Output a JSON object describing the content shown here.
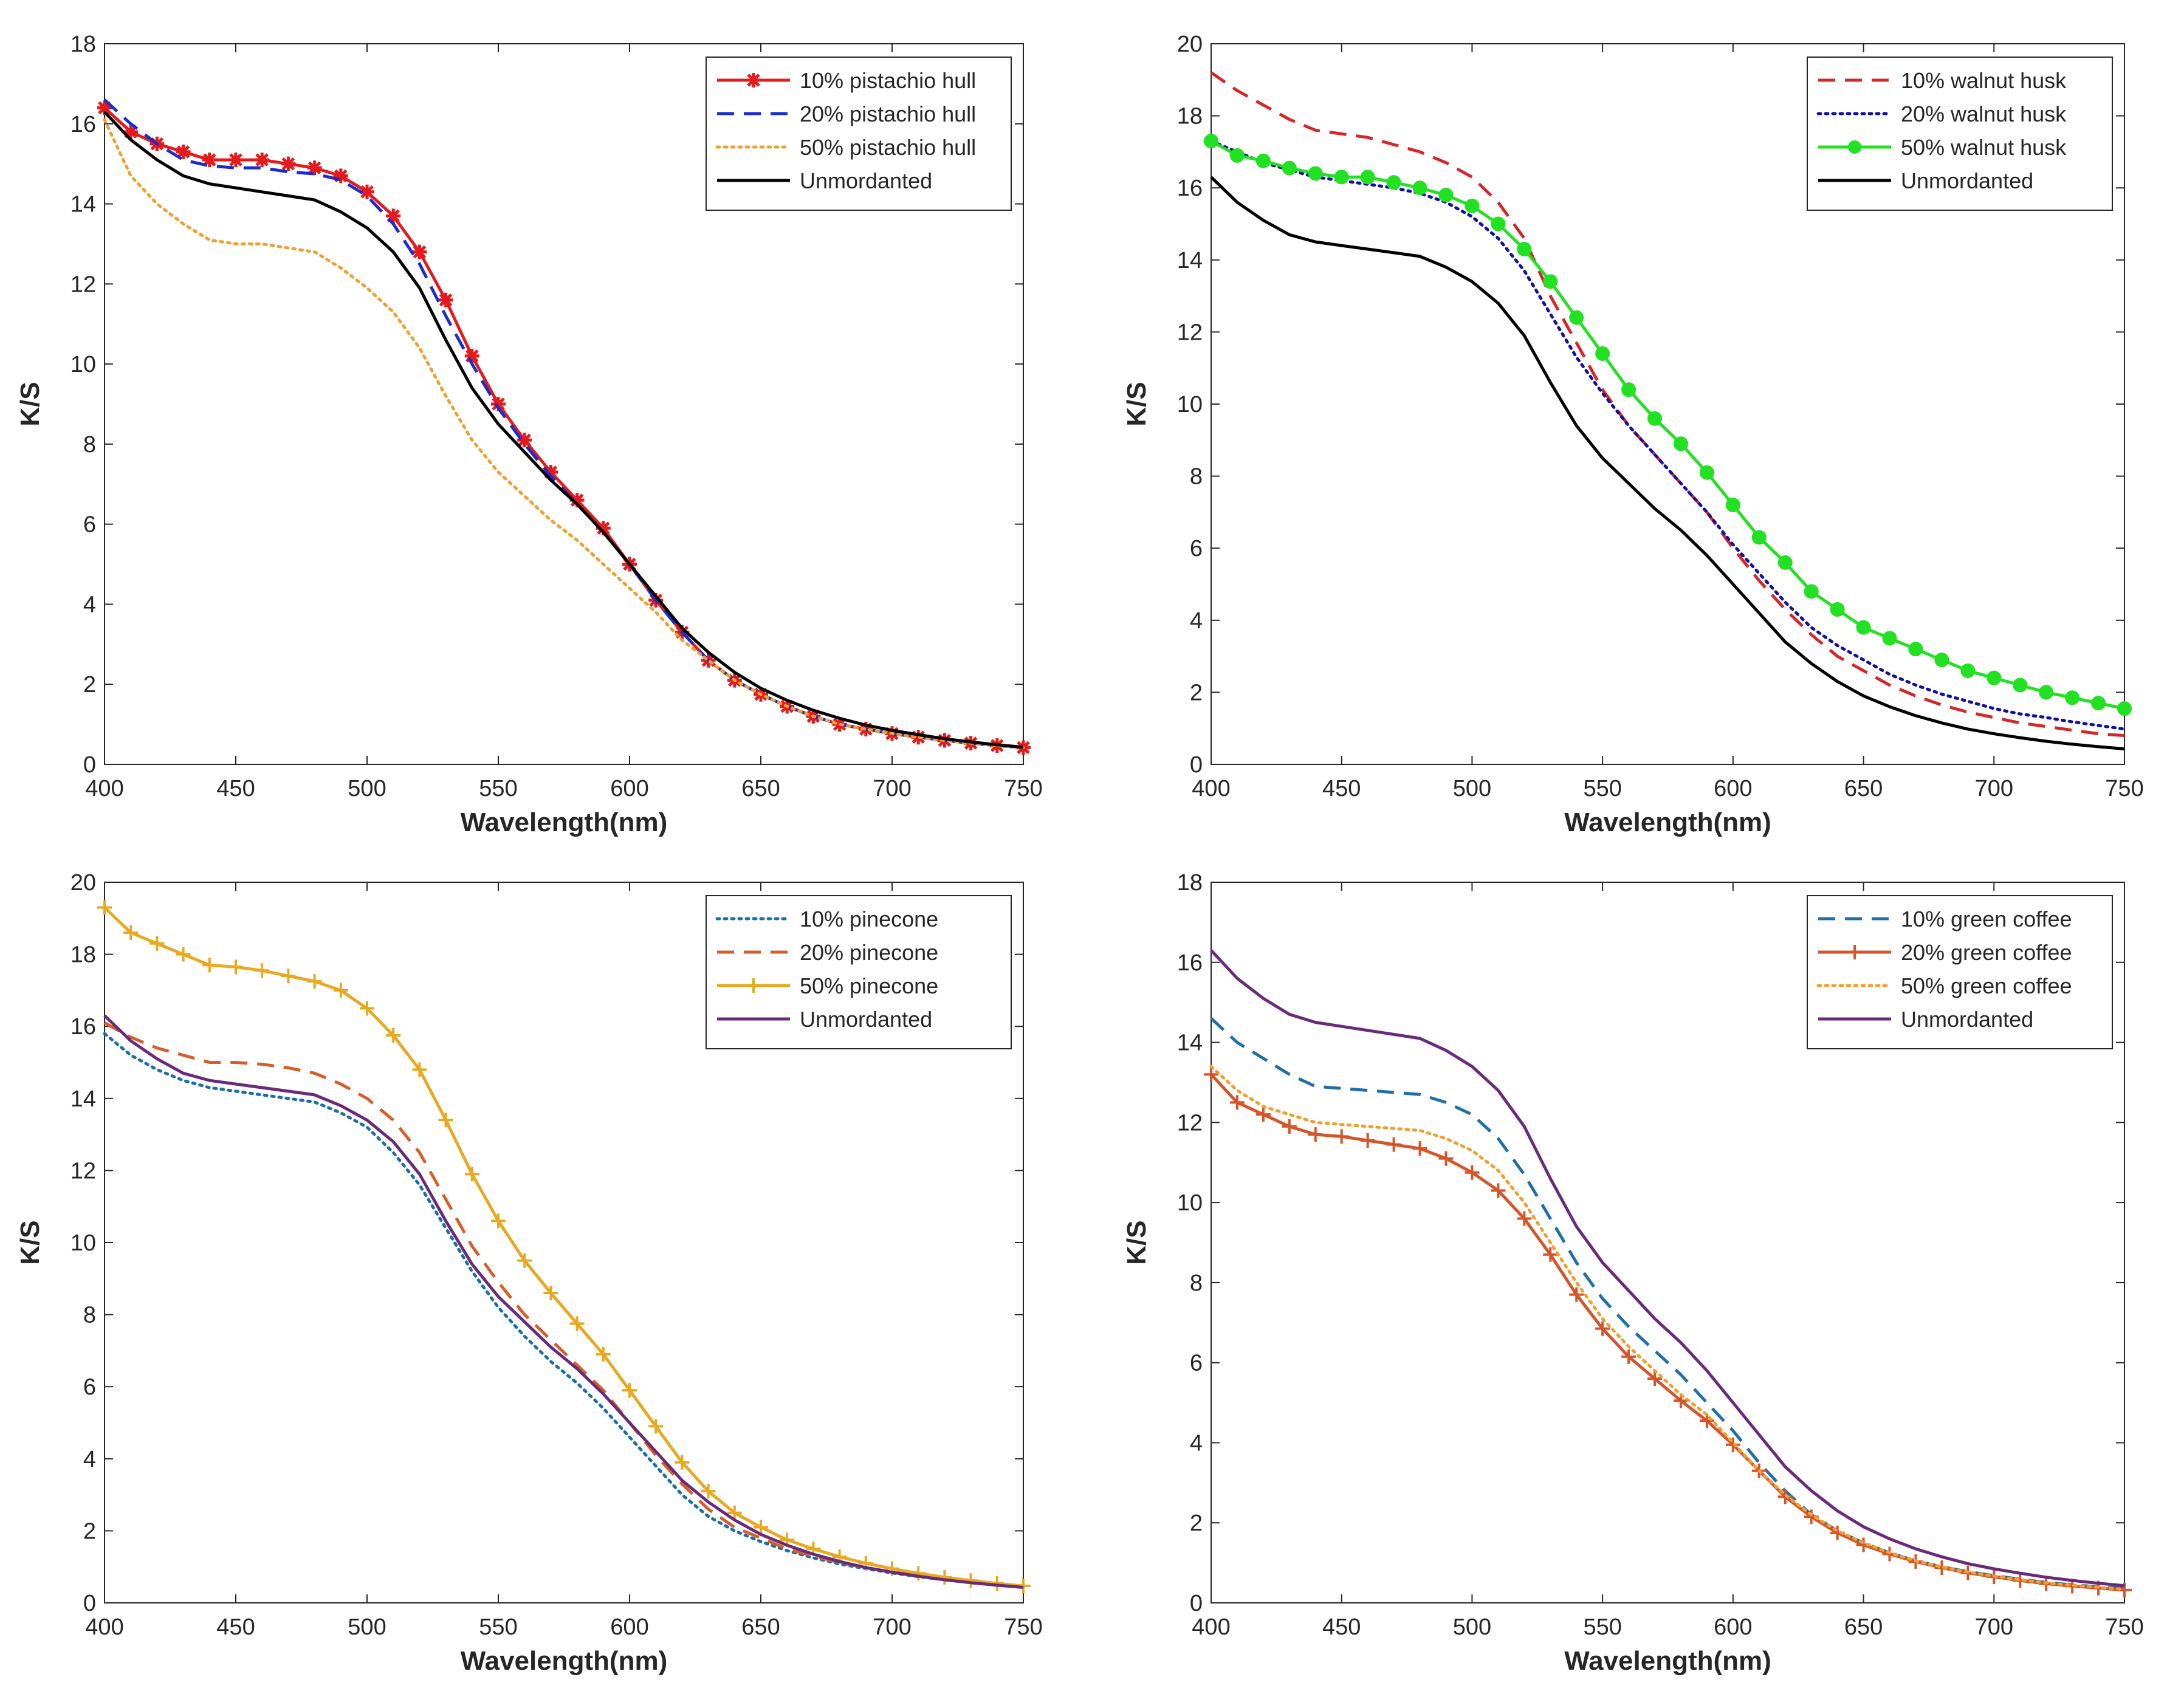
{
  "chart_data": [
    {
      "type": "line",
      "title": "",
      "xlabel": "Wavelength(nm)",
      "ylabel": "K/S",
      "xlim": [
        400,
        750
      ],
      "ylim": [
        0,
        18
      ],
      "xticks": [
        400,
        450,
        500,
        550,
        600,
        650,
        700,
        750
      ],
      "yticks": [
        0,
        2,
        4,
        6,
        8,
        10,
        12,
        14,
        16,
        18
      ],
      "legend_position": "top-right",
      "x": [
        400,
        410,
        420,
        430,
        440,
        450,
        460,
        470,
        480,
        490,
        500,
        510,
        520,
        530,
        540,
        550,
        560,
        570,
        580,
        590,
        600,
        610,
        620,
        630,
        640,
        650,
        660,
        670,
        680,
        690,
        700,
        710,
        720,
        730,
        740,
        750
      ],
      "series": [
        {
          "name": "10% pistachio hull",
          "color": "#e41a1c",
          "style": "solid",
          "marker": "asterisk",
          "values": [
            16.4,
            15.8,
            15.5,
            15.3,
            15.1,
            15.1,
            15.1,
            15.0,
            14.9,
            14.7,
            14.3,
            13.7,
            12.8,
            11.6,
            10.2,
            9.0,
            8.1,
            7.3,
            6.6,
            5.9,
            5.0,
            4.1,
            3.3,
            2.6,
            2.1,
            1.75,
            1.45,
            1.2,
            1.0,
            0.88,
            0.77,
            0.68,
            0.6,
            0.53,
            0.47,
            0.42
          ]
        },
        {
          "name": "20% pistachio hull",
          "color": "#1a2ccc",
          "style": "dashed",
          "marker": "none",
          "values": [
            16.6,
            16.0,
            15.5,
            15.1,
            14.95,
            14.9,
            14.9,
            14.8,
            14.75,
            14.6,
            14.2,
            13.5,
            12.5,
            11.2,
            10.0,
            8.9,
            8.0,
            7.2,
            6.5,
            5.8,
            5.0,
            4.1,
            3.3,
            2.6,
            2.1,
            1.75,
            1.45,
            1.2,
            1.0,
            0.88,
            0.77,
            0.68,
            0.6,
            0.53,
            0.47,
            0.42
          ]
        },
        {
          "name": "50% pistachio hull",
          "color": "#f0a030",
          "style": "dotted",
          "marker": "none",
          "values": [
            16.1,
            14.7,
            14.0,
            13.5,
            13.1,
            13.0,
            13.0,
            12.9,
            12.8,
            12.4,
            11.9,
            11.3,
            10.4,
            9.2,
            8.1,
            7.3,
            6.7,
            6.1,
            5.6,
            5.0,
            4.4,
            3.8,
            3.1,
            2.6,
            2.1,
            1.75,
            1.45,
            1.2,
            1.0,
            0.88,
            0.77,
            0.68,
            0.6,
            0.53,
            0.47,
            0.42
          ]
        },
        {
          "name": "Unmordanted",
          "color": "#000000",
          "style": "solid",
          "marker": "none",
          "values": [
            16.3,
            15.6,
            15.1,
            14.7,
            14.5,
            14.4,
            14.3,
            14.2,
            14.1,
            13.8,
            13.4,
            12.8,
            11.9,
            10.6,
            9.4,
            8.5,
            7.8,
            7.1,
            6.5,
            5.8,
            5.0,
            4.2,
            3.4,
            2.8,
            2.3,
            1.9,
            1.6,
            1.35,
            1.15,
            0.98,
            0.85,
            0.74,
            0.64,
            0.56,
            0.49,
            0.43
          ]
        }
      ]
    },
    {
      "type": "line",
      "title": "",
      "xlabel": "Wavelength(nm)",
      "ylabel": "K/S",
      "xlim": [
        400,
        750
      ],
      "ylim": [
        0,
        20
      ],
      "xticks": [
        400,
        450,
        500,
        550,
        600,
        650,
        700,
        750
      ],
      "yticks": [
        0,
        2,
        4,
        6,
        8,
        10,
        12,
        14,
        16,
        18,
        20
      ],
      "legend_position": "top-right",
      "x": [
        400,
        410,
        420,
        430,
        440,
        450,
        460,
        470,
        480,
        490,
        500,
        510,
        520,
        530,
        540,
        550,
        560,
        570,
        580,
        590,
        600,
        610,
        620,
        630,
        640,
        650,
        660,
        670,
        680,
        690,
        700,
        710,
        720,
        730,
        740,
        750
      ],
      "series": [
        {
          "name": "10% walnut husk",
          "color": "#d62728",
          "style": "dashed",
          "marker": "none",
          "values": [
            19.2,
            18.7,
            18.3,
            17.9,
            17.6,
            17.5,
            17.4,
            17.2,
            17.0,
            16.7,
            16.3,
            15.6,
            14.6,
            13.0,
            11.7,
            10.4,
            9.4,
            8.6,
            7.8,
            7.0,
            6.0,
            5.1,
            4.3,
            3.6,
            3.0,
            2.6,
            2.2,
            1.9,
            1.65,
            1.45,
            1.3,
            1.15,
            1.05,
            0.95,
            0.85,
            0.8
          ]
        },
        {
          "name": "20% walnut husk",
          "color": "#1010a0",
          "style": "dotted",
          "marker": "none",
          "values": [
            17.3,
            17.0,
            16.7,
            16.5,
            16.3,
            16.2,
            16.1,
            16.0,
            15.85,
            15.6,
            15.2,
            14.6,
            13.7,
            12.5,
            11.3,
            10.3,
            9.4,
            8.6,
            7.8,
            7.0,
            6.1,
            5.3,
            4.5,
            3.8,
            3.3,
            2.9,
            2.5,
            2.2,
            1.95,
            1.75,
            1.55,
            1.4,
            1.3,
            1.18,
            1.08,
            0.98
          ]
        },
        {
          "name": "50% walnut husk",
          "color": "#22e022",
          "style": "solid",
          "marker": "circle",
          "values": [
            17.3,
            16.9,
            16.75,
            16.55,
            16.4,
            16.3,
            16.3,
            16.15,
            16.0,
            15.8,
            15.5,
            15.0,
            14.3,
            13.4,
            12.4,
            11.4,
            10.4,
            9.6,
            8.9,
            8.1,
            7.2,
            6.3,
            5.6,
            4.8,
            4.3,
            3.8,
            3.5,
            3.2,
            2.9,
            2.6,
            2.4,
            2.2,
            2.0,
            1.85,
            1.7,
            1.55
          ]
        },
        {
          "name": "Unmordanted",
          "color": "#000000",
          "style": "solid",
          "marker": "none",
          "values": [
            16.3,
            15.6,
            15.1,
            14.7,
            14.5,
            14.4,
            14.3,
            14.2,
            14.1,
            13.8,
            13.4,
            12.8,
            11.9,
            10.6,
            9.4,
            8.5,
            7.8,
            7.1,
            6.5,
            5.8,
            5.0,
            4.2,
            3.4,
            2.8,
            2.3,
            1.9,
            1.6,
            1.35,
            1.15,
            0.98,
            0.85,
            0.74,
            0.64,
            0.56,
            0.49,
            0.43
          ]
        }
      ]
    },
    {
      "type": "line",
      "title": "",
      "xlabel": "Wavelength(nm)",
      "ylabel": "K/S",
      "xlim": [
        400,
        750
      ],
      "ylim": [
        0,
        20
      ],
      "xticks": [
        400,
        450,
        500,
        550,
        600,
        650,
        700,
        750
      ],
      "yticks": [
        0,
        2,
        4,
        6,
        8,
        10,
        12,
        14,
        16,
        18,
        20
      ],
      "legend_position": "top-right",
      "x": [
        400,
        410,
        420,
        430,
        440,
        450,
        460,
        470,
        480,
        490,
        500,
        510,
        520,
        530,
        540,
        550,
        560,
        570,
        580,
        590,
        600,
        610,
        620,
        630,
        640,
        650,
        660,
        670,
        680,
        690,
        700,
        710,
        720,
        730,
        740,
        750
      ],
      "series": [
        {
          "name": "10% pinecone",
          "color": "#1a6fa8",
          "style": "dotted",
          "marker": "none",
          "values": [
            15.8,
            15.2,
            14.8,
            14.5,
            14.3,
            14.2,
            14.1,
            14.0,
            13.9,
            13.6,
            13.2,
            12.5,
            11.6,
            10.4,
            9.2,
            8.2,
            7.4,
            6.7,
            6.1,
            5.4,
            4.6,
            3.8,
            3.0,
            2.4,
            2.0,
            1.7,
            1.45,
            1.25,
            1.08,
            0.95,
            0.83,
            0.73,
            0.64,
            0.56,
            0.49,
            0.43
          ]
        },
        {
          "name": "20% pinecone",
          "color": "#d55e2a",
          "style": "dashed",
          "marker": "none",
          "values": [
            16.1,
            15.7,
            15.4,
            15.2,
            15.0,
            15.0,
            14.95,
            14.85,
            14.7,
            14.4,
            14.0,
            13.4,
            12.5,
            11.2,
            9.9,
            8.9,
            8.0,
            7.3,
            6.6,
            5.9,
            5.0,
            4.1,
            3.3,
            2.6,
            2.1,
            1.8,
            1.5,
            1.3,
            1.12,
            0.98,
            0.86,
            0.75,
            0.66,
            0.58,
            0.5,
            0.44
          ]
        },
        {
          "name": "50% pinecone",
          "color": "#e8a820",
          "style": "solid",
          "marker": "plus",
          "values": [
            19.3,
            18.6,
            18.3,
            18.0,
            17.7,
            17.65,
            17.55,
            17.4,
            17.25,
            17.0,
            16.5,
            15.75,
            14.8,
            13.4,
            11.9,
            10.6,
            9.5,
            8.6,
            7.75,
            6.9,
            5.9,
            4.9,
            3.9,
            3.1,
            2.5,
            2.1,
            1.75,
            1.5,
            1.28,
            1.1,
            0.95,
            0.82,
            0.71,
            0.62,
            0.54,
            0.47
          ]
        },
        {
          "name": "Unmordanted",
          "color": "#6a2a7a",
          "style": "solid",
          "marker": "none",
          "values": [
            16.3,
            15.6,
            15.1,
            14.7,
            14.5,
            14.4,
            14.3,
            14.2,
            14.1,
            13.8,
            13.4,
            12.8,
            11.9,
            10.6,
            9.4,
            8.5,
            7.8,
            7.1,
            6.5,
            5.8,
            5.0,
            4.2,
            3.4,
            2.8,
            2.3,
            1.9,
            1.6,
            1.35,
            1.15,
            0.98,
            0.85,
            0.74,
            0.64,
            0.56,
            0.49,
            0.43
          ]
        }
      ]
    },
    {
      "type": "line",
      "title": "",
      "xlabel": "Wavelength(nm)",
      "ylabel": "K/S",
      "xlim": [
        400,
        750
      ],
      "ylim": [
        0,
        18
      ],
      "xticks": [
        400,
        450,
        500,
        550,
        600,
        650,
        700,
        750
      ],
      "yticks": [
        0,
        2,
        4,
        6,
        8,
        10,
        12,
        14,
        16,
        18
      ],
      "legend_position": "top-right",
      "x": [
        400,
        410,
        420,
        430,
        440,
        450,
        460,
        470,
        480,
        490,
        500,
        510,
        520,
        530,
        540,
        550,
        560,
        570,
        580,
        590,
        600,
        610,
        620,
        630,
        640,
        650,
        660,
        670,
        680,
        690,
        700,
        710,
        720,
        730,
        740,
        750
      ],
      "series": [
        {
          "name": "10% green coffee",
          "color": "#1f6fa8",
          "style": "dashed",
          "marker": "none",
          "values": [
            14.6,
            14.0,
            13.6,
            13.2,
            12.9,
            12.85,
            12.8,
            12.75,
            12.7,
            12.5,
            12.2,
            11.6,
            10.7,
            9.6,
            8.5,
            7.6,
            6.9,
            6.3,
            5.7,
            5.0,
            4.3,
            3.5,
            2.8,
            2.2,
            1.8,
            1.5,
            1.25,
            1.05,
            0.9,
            0.78,
            0.68,
            0.59,
            0.51,
            0.45,
            0.4,
            0.36
          ]
        },
        {
          "name": "20% green coffee",
          "color": "#d5542a",
          "style": "solid",
          "marker": "plus",
          "values": [
            13.2,
            12.5,
            12.2,
            11.9,
            11.7,
            11.65,
            11.55,
            11.45,
            11.35,
            11.1,
            10.75,
            10.3,
            9.6,
            8.7,
            7.7,
            6.85,
            6.15,
            5.6,
            5.05,
            4.55,
            3.95,
            3.3,
            2.65,
            2.15,
            1.75,
            1.45,
            1.22,
            1.03,
            0.88,
            0.75,
            0.65,
            0.56,
            0.48,
            0.42,
            0.37,
            0.32
          ]
        },
        {
          "name": "50% green coffee",
          "color": "#f0a030",
          "style": "dotted",
          "marker": "none",
          "values": [
            13.4,
            12.8,
            12.4,
            12.2,
            12.0,
            11.95,
            11.9,
            11.85,
            11.8,
            11.6,
            11.3,
            10.8,
            10.0,
            9.0,
            8.0,
            7.1,
            6.4,
            5.8,
            5.2,
            4.7,
            4.0,
            3.3,
            2.7,
            2.2,
            1.8,
            1.5,
            1.25,
            1.05,
            0.9,
            0.77,
            0.67,
            0.58,
            0.5,
            0.44,
            0.39,
            0.34
          ]
        },
        {
          "name": "Unmordanted",
          "color": "#6a2a7a",
          "style": "solid",
          "marker": "none",
          "values": [
            16.3,
            15.6,
            15.1,
            14.7,
            14.5,
            14.4,
            14.3,
            14.2,
            14.1,
            13.8,
            13.4,
            12.8,
            11.9,
            10.6,
            9.4,
            8.5,
            7.8,
            7.1,
            6.5,
            5.8,
            5.0,
            4.2,
            3.4,
            2.8,
            2.3,
            1.9,
            1.6,
            1.35,
            1.15,
            0.98,
            0.85,
            0.74,
            0.64,
            0.56,
            0.49,
            0.43
          ]
        }
      ]
    }
  ]
}
